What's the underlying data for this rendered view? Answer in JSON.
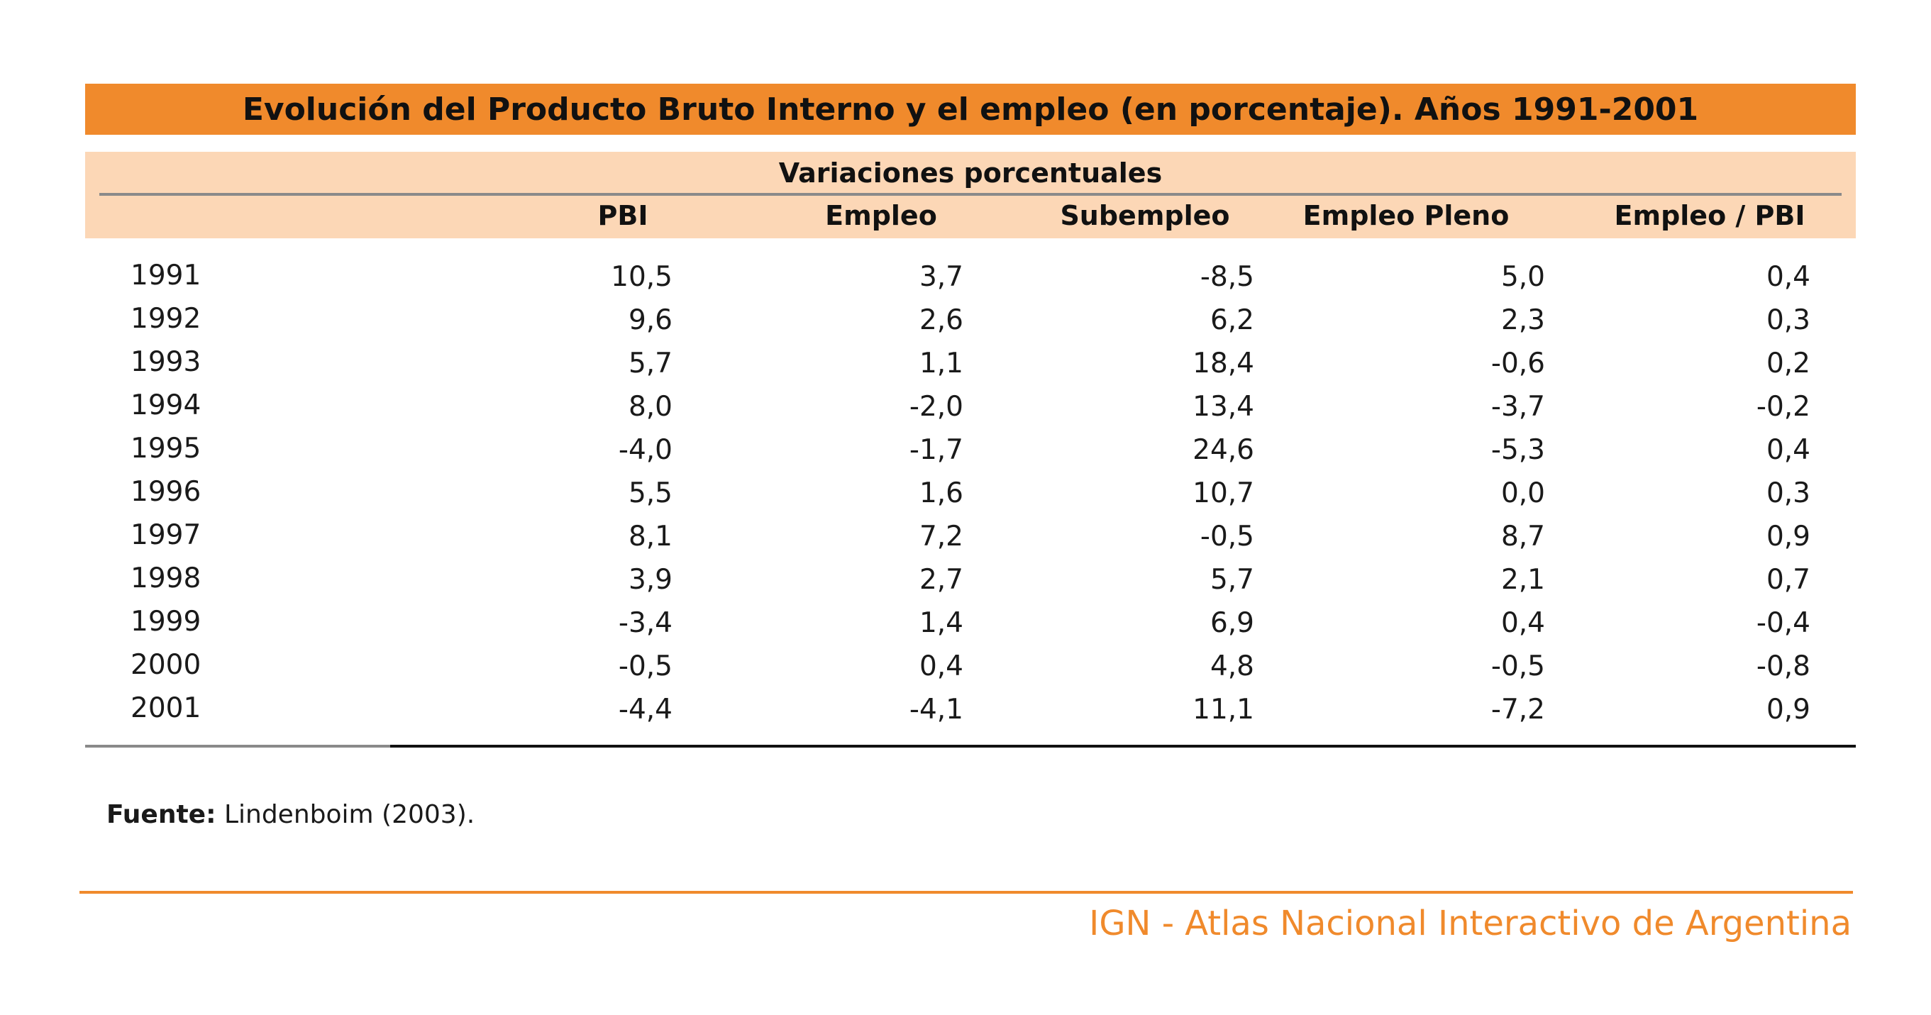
{
  "title": "Evolución del Producto Bruto Interno y el empleo (en porcentaje). Años 1991-2001",
  "group_header": "Variaciones porcentuales",
  "source_label": "Fuente:",
  "source_text": "Lindenboim (2003).",
  "footer": "IGN - Atlas Nacional Interactivo de Argentina",
  "colors": {
    "title_bar": "#f08a2c",
    "header_band": "#fcd7b6",
    "footer": "#f08a2c"
  },
  "chart_data": {
    "type": "table",
    "title": "Evolución del Producto Bruto Interno y el empleo (en porcentaje). Años 1991-2001",
    "columns": [
      "PBI",
      "Empleo",
      "Subempleo",
      "Empleo Pleno",
      "Empleo / PBI"
    ],
    "rows": [
      {
        "year": "1991",
        "values": [
          "10,5",
          "3,7",
          "-8,5",
          "5,0",
          "0,4"
        ]
      },
      {
        "year": "1992",
        "values": [
          "9,6",
          "2,6",
          "6,2",
          "2,3",
          "0,3"
        ]
      },
      {
        "year": "1993",
        "values": [
          "5,7",
          "1,1",
          "18,4",
          "-0,6",
          "0,2"
        ]
      },
      {
        "year": "1994",
        "values": [
          "8,0",
          "-2,0",
          "13,4",
          "-3,7",
          "-0,2"
        ]
      },
      {
        "year": "1995",
        "values": [
          "-4,0",
          "-1,7",
          "24,6",
          "-5,3",
          "0,4"
        ]
      },
      {
        "year": "1996",
        "values": [
          "5,5",
          "1,6",
          "10,7",
          "0,0",
          "0,3"
        ]
      },
      {
        "year": "1997",
        "values": [
          "8,1",
          "7,2",
          "-0,5",
          "8,7",
          "0,9"
        ]
      },
      {
        "year": "1998",
        "values": [
          "3,9",
          "2,7",
          "5,7",
          "2,1",
          "0,7"
        ]
      },
      {
        "year": "1999",
        "values": [
          "-3,4",
          "1,4",
          "6,9",
          "0,4",
          "-0,4"
        ]
      },
      {
        "year": "2000",
        "values": [
          "-0,5",
          "0,4",
          "4,8",
          "-0,5",
          "-0,8"
        ]
      },
      {
        "year": "2001",
        "values": [
          "-4,4",
          "-4,1",
          "11,1",
          "-7,2",
          "0,9"
        ]
      }
    ]
  }
}
